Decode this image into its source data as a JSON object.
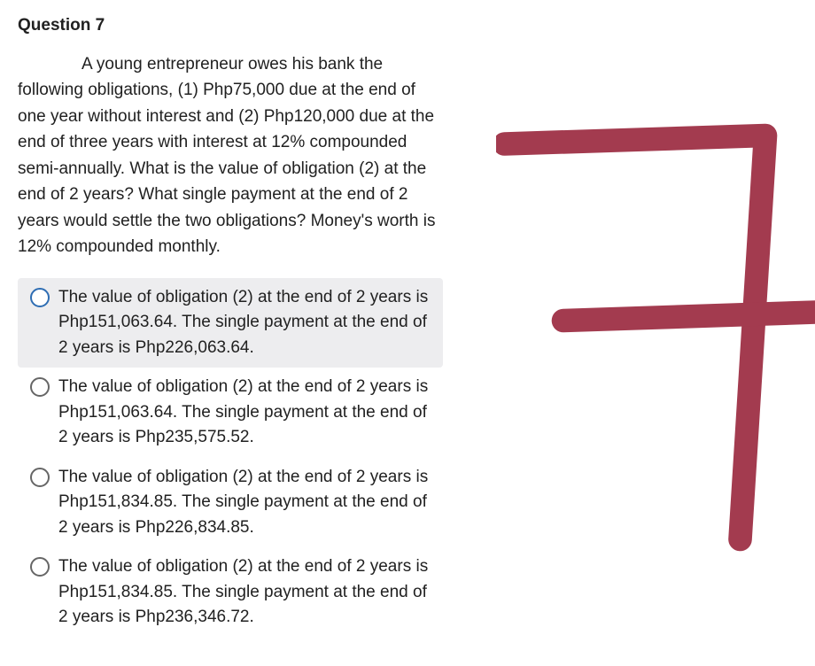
{
  "question": {
    "title": "Question 7",
    "body": "A young entrepreneur owes his bank the following obligations, (1) Php75,000 due at the end of one year without interest and (2) Php120,000 due at the end of three years with interest at 12% compounded semi-annually. What is the value of obligation (2) at the end of 2 years? What single payment at the end of 2 years would settle the two obligations? Money's worth is 12% compounded monthly."
  },
  "options": [
    {
      "text": "The value of obligation (2) at the end of 2 years is Php151,063.64. The single payment at the end of 2 years is Php226,063.64.",
      "highlighted": true
    },
    {
      "text": "The value of obligation (2) at the end of 2 years is Php151,063.64. The single payment at the end of 2 years is Php235,575.52.",
      "highlighted": false
    },
    {
      "text": "The value of obligation (2) at the end of 2 years is Php151,834.85. The single payment at the end of 2 years is Php226,834.85.",
      "highlighted": false
    },
    {
      "text": "The value of obligation (2) at the end of 2 years is Php151,834.85. The single payment at the end of 2 years is Php236,346.72.",
      "highlighted": false
    }
  ],
  "scribble": {
    "stroke_color": "#a33b4f",
    "stroke_width": 28,
    "paths": [
      "M 10 30 L 320 20 L 290 500",
      "M 80 240 L 380 230"
    ]
  },
  "colors": {
    "text": "#212121",
    "highlight_bg": "#ededef",
    "radio_border": "#666666",
    "radio_active": "#2e6db3",
    "background": "#ffffff"
  },
  "typography": {
    "title_fontsize": 19,
    "title_weight": 700,
    "body_fontsize": 19,
    "body_lineheight": 1.55,
    "option_fontsize": 19
  }
}
